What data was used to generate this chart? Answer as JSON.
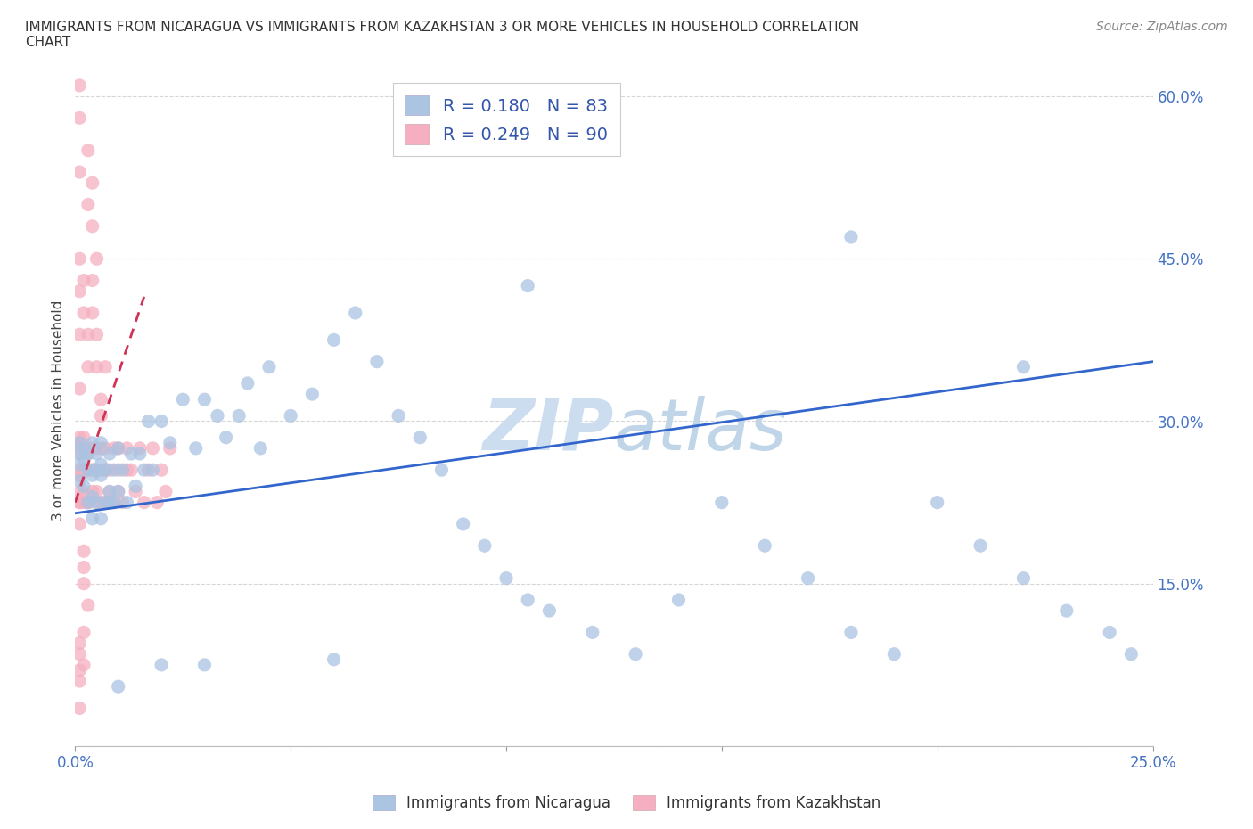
{
  "title_line1": "IMMIGRANTS FROM NICARAGUA VS IMMIGRANTS FROM KAZAKHSTAN 3 OR MORE VEHICLES IN HOUSEHOLD CORRELATION",
  "title_line2": "CHART",
  "source_text": "Source: ZipAtlas.com",
  "ylabel": "3 or more Vehicles in Household",
  "x_min": 0.0,
  "x_max": 0.25,
  "y_min": 0.0,
  "y_max": 0.62,
  "nicaragua_R": 0.18,
  "nicaragua_N": 83,
  "kazakhstan_R": 0.249,
  "kazakhstan_N": 90,
  "nicaragua_color": "#aac4e2",
  "kazakhstan_color": "#f5afc0",
  "trend_line_nicaragua_color": "#3366cc",
  "trend_line_kazakhstan_color": "#cc3355",
  "background_color": "#ffffff",
  "legend_nicaragua_label": "Immigrants from Nicaragua",
  "legend_kazakhstan_label": "Immigrants from Kazakhstan",
  "nicaragua_x": [
    0.001,
    0.001,
    0.001,
    0.001,
    0.002,
    0.002,
    0.002,
    0.003,
    0.003,
    0.003,
    0.004,
    0.004,
    0.004,
    0.005,
    0.005,
    0.005,
    0.006,
    0.006,
    0.006,
    0.007,
    0.007,
    0.008,
    0.008,
    0.009,
    0.009,
    0.01,
    0.01,
    0.011,
    0.012,
    0.013,
    0.014,
    0.015,
    0.016,
    0.017,
    0.018,
    0.02,
    0.022,
    0.025,
    0.028,
    0.03,
    0.033,
    0.035,
    0.038,
    0.04,
    0.043,
    0.045,
    0.05,
    0.055,
    0.06,
    0.065,
    0.07,
    0.075,
    0.08,
    0.085,
    0.09,
    0.095,
    0.1,
    0.105,
    0.11,
    0.12,
    0.13,
    0.14,
    0.15,
    0.16,
    0.17,
    0.18,
    0.19,
    0.2,
    0.21,
    0.22,
    0.23,
    0.24,
    0.245,
    0.18,
    0.22,
    0.105,
    0.06,
    0.03,
    0.02,
    0.01,
    0.008,
    0.006,
    0.004
  ],
  "nicaragua_y": [
    0.245,
    0.26,
    0.27,
    0.28,
    0.265,
    0.24,
    0.275,
    0.225,
    0.255,
    0.27,
    0.21,
    0.25,
    0.28,
    0.225,
    0.255,
    0.27,
    0.21,
    0.25,
    0.28,
    0.225,
    0.255,
    0.27,
    0.235,
    0.255,
    0.225,
    0.275,
    0.235,
    0.255,
    0.225,
    0.27,
    0.24,
    0.27,
    0.255,
    0.3,
    0.255,
    0.3,
    0.28,
    0.32,
    0.275,
    0.32,
    0.305,
    0.285,
    0.305,
    0.335,
    0.275,
    0.35,
    0.305,
    0.325,
    0.375,
    0.4,
    0.355,
    0.305,
    0.285,
    0.255,
    0.205,
    0.185,
    0.155,
    0.135,
    0.125,
    0.105,
    0.085,
    0.135,
    0.225,
    0.185,
    0.155,
    0.105,
    0.085,
    0.225,
    0.185,
    0.155,
    0.125,
    0.105,
    0.085,
    0.47,
    0.35,
    0.425,
    0.08,
    0.075,
    0.075,
    0.055,
    0.225,
    0.26,
    0.23
  ],
  "kazakhstan_x": [
    0.001,
    0.001,
    0.001,
    0.001,
    0.001,
    0.001,
    0.001,
    0.001,
    0.001,
    0.001,
    0.002,
    0.002,
    0.002,
    0.002,
    0.002,
    0.003,
    0.003,
    0.003,
    0.003,
    0.003,
    0.004,
    0.004,
    0.004,
    0.004,
    0.005,
    0.005,
    0.005,
    0.005,
    0.006,
    0.006,
    0.006,
    0.007,
    0.007,
    0.007,
    0.008,
    0.008,
    0.008,
    0.009,
    0.009,
    0.01,
    0.01,
    0.01,
    0.011,
    0.012,
    0.012,
    0.013,
    0.014,
    0.015,
    0.016,
    0.017,
    0.018,
    0.019,
    0.02,
    0.021,
    0.022,
    0.001,
    0.001,
    0.001,
    0.002,
    0.002,
    0.003,
    0.003,
    0.004,
    0.004,
    0.005,
    0.005,
    0.006,
    0.006,
    0.007,
    0.003,
    0.003,
    0.004,
    0.004,
    0.005,
    0.002,
    0.002,
    0.003,
    0.001,
    0.001,
    0.002,
    0.001,
    0.001,
    0.001,
    0.002,
    0.001,
    0.001,
    0.002,
    0.001,
    0.001,
    0.001
  ],
  "kazakhstan_y": [
    0.25,
    0.275,
    0.255,
    0.225,
    0.205,
    0.25,
    0.28,
    0.235,
    0.27,
    0.225,
    0.255,
    0.285,
    0.235,
    0.255,
    0.225,
    0.275,
    0.225,
    0.27,
    0.255,
    0.225,
    0.255,
    0.275,
    0.235,
    0.255,
    0.255,
    0.225,
    0.275,
    0.235,
    0.255,
    0.225,
    0.275,
    0.225,
    0.255,
    0.275,
    0.235,
    0.255,
    0.225,
    0.275,
    0.225,
    0.255,
    0.235,
    0.275,
    0.225,
    0.255,
    0.275,
    0.255,
    0.235,
    0.275,
    0.225,
    0.255,
    0.275,
    0.225,
    0.255,
    0.235,
    0.275,
    0.42,
    0.38,
    0.45,
    0.4,
    0.43,
    0.38,
    0.35,
    0.4,
    0.43,
    0.38,
    0.35,
    0.32,
    0.305,
    0.35,
    0.55,
    0.5,
    0.48,
    0.52,
    0.45,
    0.18,
    0.15,
    0.13,
    0.085,
    0.07,
    0.075,
    0.58,
    0.61,
    0.53,
    0.105,
    0.33,
    0.285,
    0.165,
    0.095,
    0.06,
    0.035
  ]
}
